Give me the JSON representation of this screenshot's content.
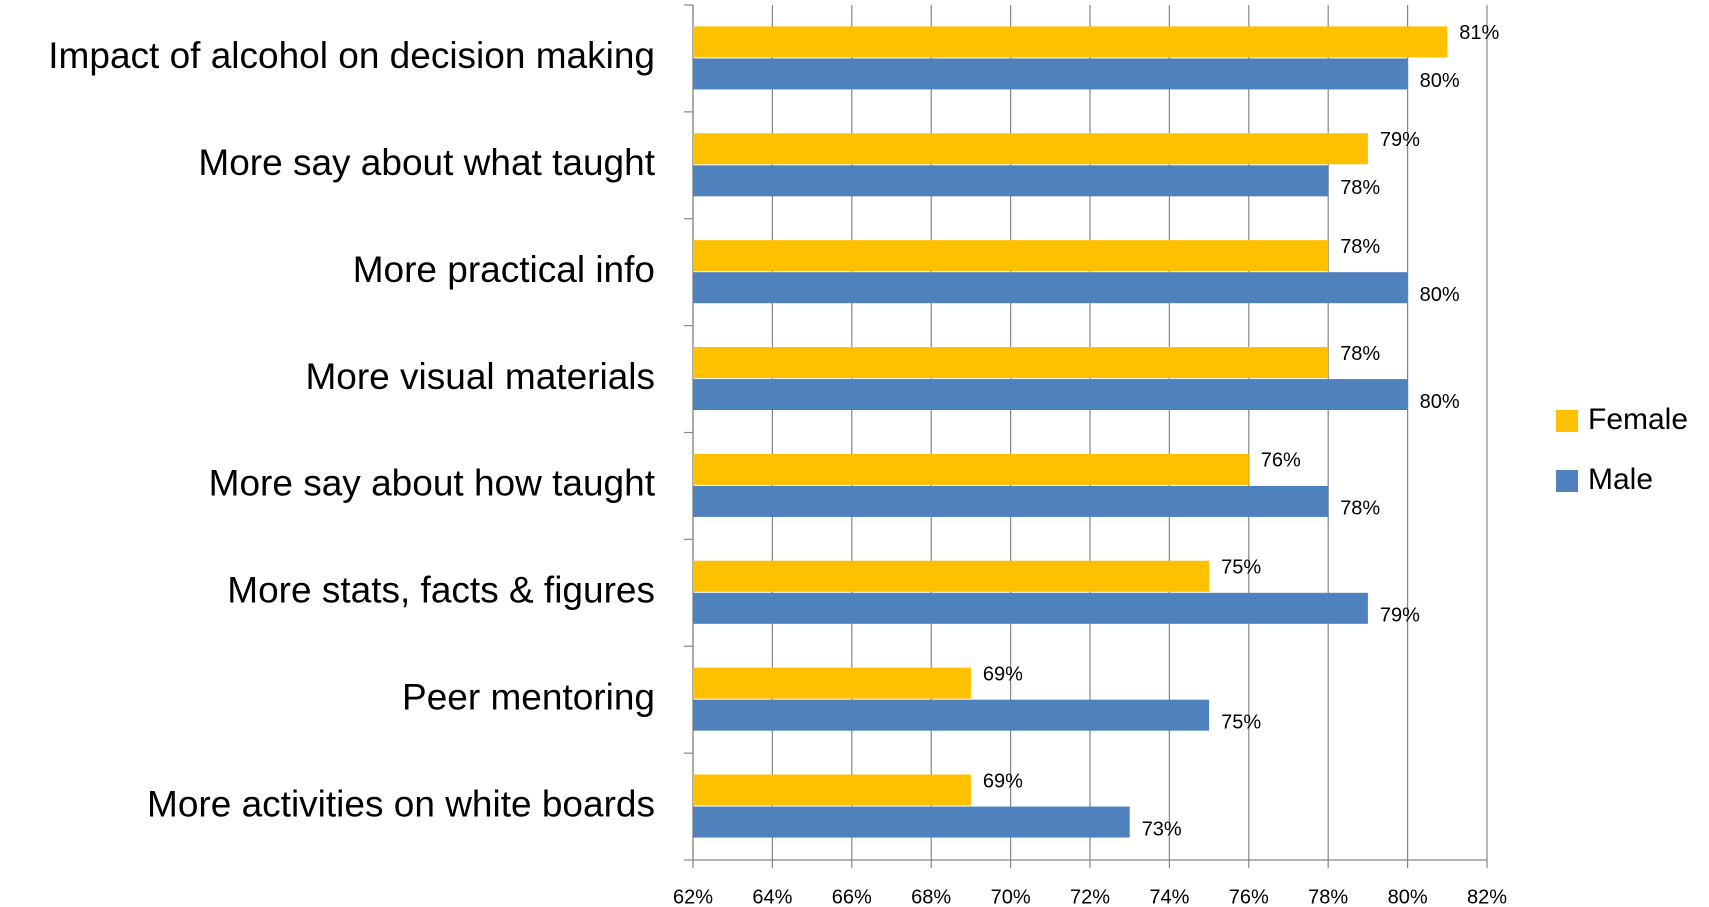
{
  "chart_data": {
    "type": "hbar",
    "categories": [
      "Impact of alcohol on decision making",
      "More say about what taught",
      "More practical info",
      "More visual materials",
      "More say about how taught",
      "More stats, facts & figures",
      "Peer mentoring",
      "More activities on white boards"
    ],
    "series": [
      {
        "name": "Female",
        "color": "#FFC000",
        "values": [
          81,
          79,
          78,
          78,
          76,
          75,
          69,
          69
        ],
        "value_labels": [
          "81%",
          "79%",
          "78%",
          "78%",
          "76%",
          "75%",
          "69%",
          "69%"
        ]
      },
      {
        "name": "Male",
        "color": "#4F81BD",
        "values": [
          80,
          78,
          80,
          80,
          78,
          79,
          75,
          73
        ],
        "value_labels": [
          "80%",
          "78%",
          "80%",
          "80%",
          "78%",
          "79%",
          "75%",
          "73%"
        ]
      }
    ],
    "xlim": [
      62,
      82
    ],
    "xticks": [
      {
        "value": 62,
        "label": "62%"
      },
      {
        "value": 64,
        "label": "64%"
      },
      {
        "value": 66,
        "label": "66%"
      },
      {
        "value": 68,
        "label": "68%"
      },
      {
        "value": 70,
        "label": "70%"
      },
      {
        "value": 72,
        "label": "72%"
      },
      {
        "value": 74,
        "label": "74%"
      },
      {
        "value": 76,
        "label": "76%"
      },
      {
        "value": 78,
        "label": "78%"
      },
      {
        "value": 80,
        "label": "80%"
      },
      {
        "value": 82,
        "label": "82%"
      }
    ],
    "grid": true,
    "legend": "right"
  }
}
